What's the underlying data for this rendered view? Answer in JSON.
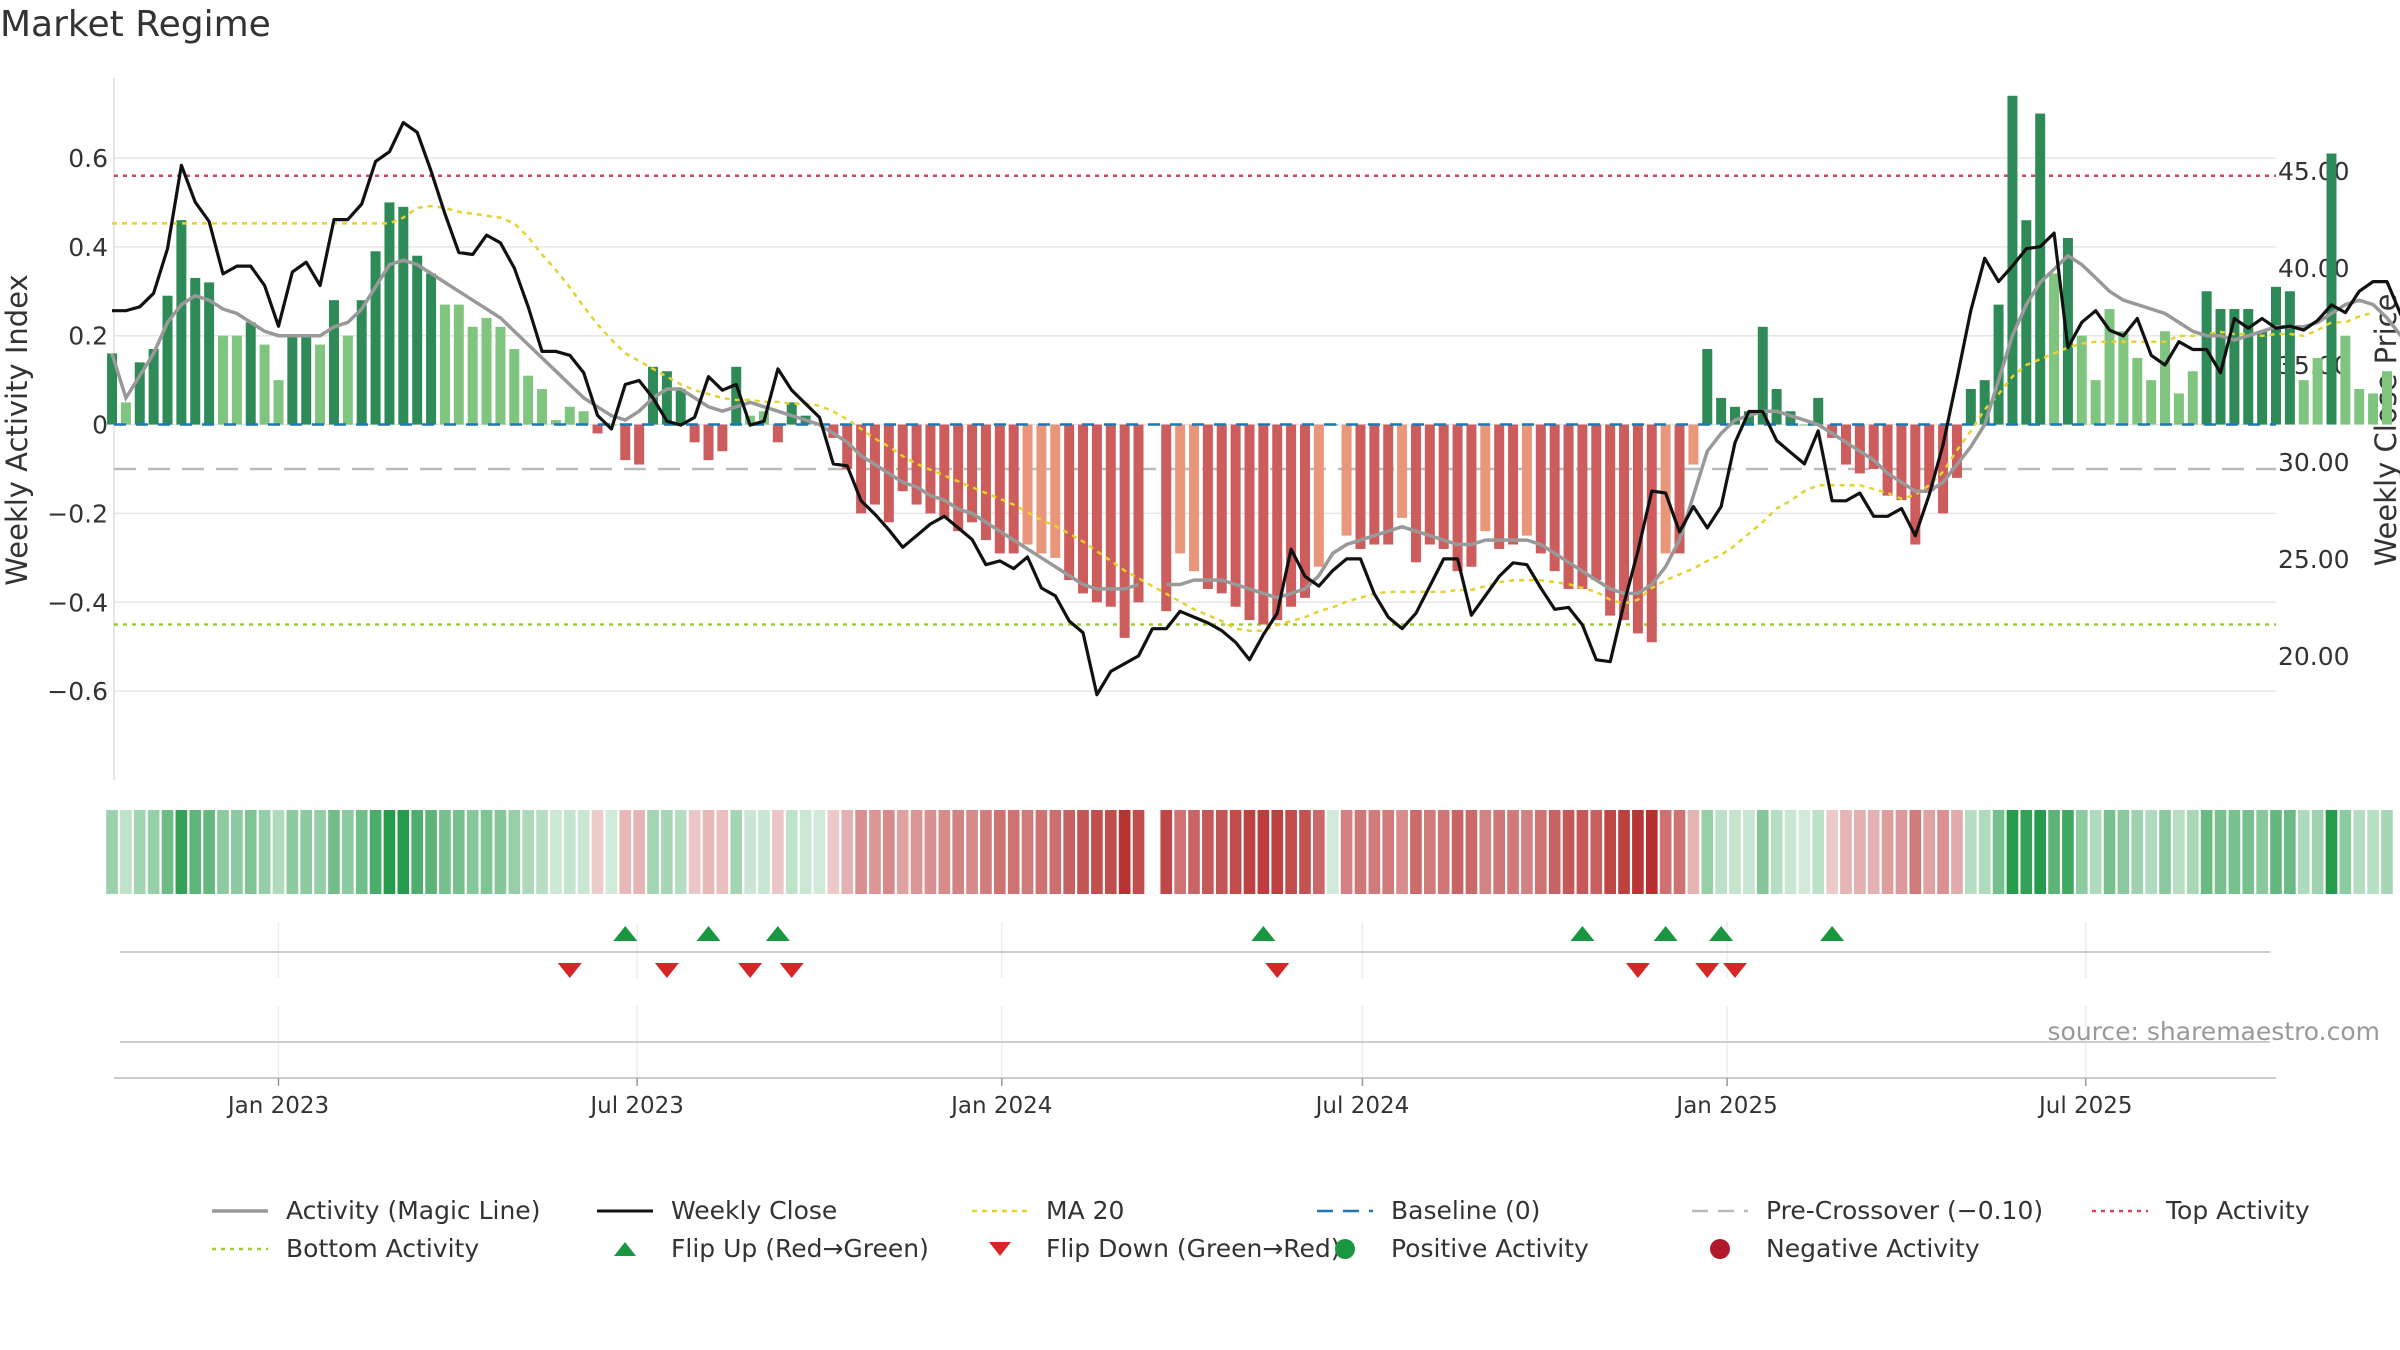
{
  "title": "Market Regime",
  "source": "source: sharemaestro.com",
  "chart_data": {
    "type": "bar",
    "y_left_label": "Weekly Activity Index",
    "y_right_label": "Weekly Close Price",
    "left_ylim": [
      -0.8,
      0.78
    ],
    "left_ticks": [
      0.6,
      0.4,
      0.2,
      0,
      -0.2,
      -0.4,
      -0.6
    ],
    "left_tick_labels": [
      "0.6",
      "0.4",
      "0.2",
      "0",
      "−0.2",
      "−0.4",
      "−0.6"
    ],
    "right_ylim": [
      13.6,
      49.8
    ],
    "right_ticks": [
      45,
      40,
      35,
      30,
      25,
      20
    ],
    "right_tick_labels": [
      "45.00",
      "40.00",
      "35.00",
      "30.00",
      "25.00",
      "20.00"
    ],
    "x_start": "2022-10-10",
    "x_end": "2025-10-05",
    "x_ticks": [
      "2023-01-01",
      "2023-07-01",
      "2024-01-01",
      "2024-07-01",
      "2025-01-01",
      "2025-07-01"
    ],
    "x_tick_labels": [
      "Jan 2023",
      "Jul 2023",
      "Jan 2024",
      "Jul 2024",
      "Jan 2025",
      "Jul 2025"
    ],
    "bar_start": "2022-10-09",
    "bar_interval_days": 7,
    "activity": [
      0.16,
      0.05,
      0.14,
      0.17,
      0.29,
      0.46,
      0.33,
      0.32,
      0.2,
      0.2,
      0.23,
      0.18,
      0.1,
      0.2,
      0.2,
      0.18,
      0.28,
      0.2,
      0.28,
      0.39,
      0.5,
      0.49,
      0.38,
      0.34,
      0.27,
      0.27,
      0.22,
      0.24,
      0.22,
      0.17,
      0.11,
      0.08,
      0.01,
      0.04,
      0.03,
      -0.02,
      0.0,
      -0.08,
      -0.09,
      0.13,
      0.12,
      0.08,
      -0.04,
      -0.08,
      -0.06,
      0.13,
      0.02,
      0.03,
      -0.04,
      0.05,
      0.02,
      0.0,
      -0.03,
      -0.1,
      -0.2,
      -0.18,
      -0.22,
      -0.15,
      -0.18,
      -0.2,
      -0.21,
      -0.24,
      -0.22,
      -0.26,
      -0.29,
      -0.29,
      -0.27,
      -0.29,
      -0.3,
      -0.35,
      -0.38,
      -0.4,
      -0.41,
      -0.48,
      -0.4,
      null,
      -0.42,
      -0.29,
      -0.33,
      -0.37,
      -0.38,
      -0.41,
      -0.44,
      -0.45,
      -0.44,
      -0.41,
      -0.39,
      -0.32,
      0.0,
      -0.25,
      -0.28,
      -0.27,
      -0.27,
      -0.21,
      -0.31,
      -0.27,
      -0.28,
      -0.33,
      -0.32,
      -0.24,
      -0.28,
      -0.27,
      -0.25,
      -0.29,
      -0.33,
      -0.37,
      -0.37,
      -0.35,
      -0.43,
      -0.44,
      -0.47,
      -0.49,
      -0.29,
      -0.29,
      -0.09,
      0.17,
      0.06,
      0.04,
      0.03,
      0.22,
      0.08,
      0.03,
      0.0,
      0.06,
      -0.03,
      -0.09,
      -0.11,
      -0.1,
      -0.16,
      -0.17,
      -0.27,
      -0.15,
      -0.2,
      -0.12,
      0.08,
      0.1,
      0.27,
      0.74,
      0.46,
      0.7,
      0.34,
      0.42,
      0.2,
      0.1,
      0.26,
      0.21,
      0.15,
      0.1,
      0.21,
      0.07,
      0.12,
      0.3,
      0.26,
      0.26,
      0.26,
      0.21,
      0.31,
      0.3,
      0.1,
      0.15,
      0.61,
      0.2,
      0.08,
      0.07,
      0.12
    ],
    "magic_line": [
      0.16,
      0.06,
      0.11,
      0.16,
      0.23,
      0.27,
      0.29,
      0.28,
      0.26,
      0.25,
      0.23,
      0.21,
      0.2,
      0.2,
      0.2,
      0.2,
      0.22,
      0.23,
      0.26,
      0.31,
      0.36,
      0.37,
      0.36,
      0.34,
      0.32,
      0.3,
      0.28,
      0.26,
      0.24,
      0.21,
      0.18,
      0.15,
      0.12,
      0.09,
      0.06,
      0.04,
      0.02,
      0.01,
      0.03,
      0.06,
      0.08,
      0.08,
      0.06,
      0.04,
      0.03,
      0.04,
      0.05,
      0.04,
      0.03,
      0.02,
      0.01,
      0.0,
      -0.02,
      -0.04,
      -0.07,
      -0.09,
      -0.11,
      -0.13,
      -0.14,
      -0.16,
      -0.17,
      -0.19,
      -0.2,
      -0.22,
      -0.24,
      -0.26,
      -0.28,
      -0.3,
      -0.32,
      -0.34,
      -0.36,
      -0.37,
      -0.37,
      -0.37,
      -0.36,
      null,
      -0.36,
      -0.36,
      -0.35,
      -0.35,
      -0.35,
      -0.36,
      -0.37,
      -0.38,
      -0.39,
      -0.38,
      -0.37,
      -0.34,
      -0.29,
      -0.27,
      -0.26,
      -0.25,
      -0.24,
      -0.23,
      -0.24,
      -0.25,
      -0.26,
      -0.27,
      -0.27,
      -0.26,
      -0.26,
      -0.26,
      -0.26,
      -0.27,
      -0.29,
      -0.31,
      -0.33,
      -0.35,
      -0.37,
      -0.38,
      -0.38,
      -0.36,
      -0.32,
      -0.26,
      -0.16,
      -0.06,
      -0.02,
      0.01,
      0.02,
      0.03,
      0.03,
      0.02,
      0.01,
      0.0,
      -0.02,
      -0.04,
      -0.06,
      -0.08,
      -0.11,
      -0.13,
      -0.15,
      -0.15,
      -0.13,
      -0.09,
      -0.05,
      0.0,
      0.1,
      0.2,
      0.27,
      0.32,
      0.35,
      0.38,
      0.36,
      0.33,
      0.3,
      0.28,
      0.27,
      0.26,
      0.25,
      0.23,
      0.21,
      0.2,
      0.2,
      0.19,
      0.2,
      0.21,
      0.22,
      0.22,
      0.22,
      0.23,
      0.25,
      0.27,
      0.28,
      0.27,
      0.24,
      0.2,
      0.18
    ],
    "weekly_close": [
      37.8,
      37.8,
      38.0,
      38.7,
      41.0,
      45.3,
      43.4,
      42.4,
      39.7,
      40.1,
      40.1,
      39.1,
      37.0,
      39.8,
      40.3,
      39.1,
      42.5,
      42.5,
      43.3,
      45.5,
      46.0,
      47.5,
      47.0,
      45.0,
      42.8,
      40.8,
      40.7,
      41.7,
      41.3,
      40.0,
      38.0,
      35.7,
      35.7,
      35.5,
      34.6,
      32.4,
      31.7,
      34.0,
      34.2,
      33.3,
      32.1,
      31.9,
      32.3,
      34.4,
      33.7,
      34.0,
      31.9,
      32.1,
      34.8,
      33.7,
      33.0,
      32.3,
      29.9,
      29.8,
      28.0,
      27.3,
      26.5,
      25.6,
      26.2,
      26.8,
      27.2,
      26.6,
      26.0,
      24.7,
      24.9,
      24.5,
      25.1,
      23.5,
      23.1,
      21.8,
      21.2,
      18.0,
      19.2,
      19.6,
      20.0,
      21.4,
      21.4,
      22.3,
      22.0,
      21.7,
      21.3,
      20.7,
      19.8,
      21.1,
      22.2,
      25.5,
      24.1,
      23.6,
      24.4,
      25.0,
      25.0,
      23.2,
      22.0,
      21.4,
      22.2,
      23.6,
      25.0,
      25.0,
      22.1,
      23.1,
      24.1,
      24.8,
      24.7,
      23.5,
      22.4,
      22.5,
      21.6,
      19.8,
      19.7,
      22.7,
      25.4,
      28.5,
      28.4,
      26.4,
      27.7,
      26.6,
      27.7,
      31.0,
      32.6,
      32.6,
      31.1,
      30.5,
      29.9,
      31.6,
      28.0,
      28.0,
      28.4,
      27.2,
      27.2,
      27.6,
      26.2,
      28.3,
      30.9,
      34.3,
      37.8,
      40.5,
      39.3,
      40.1,
      41.0,
      41.1,
      41.8,
      35.9,
      37.2,
      37.8,
      36.8,
      36.5,
      37.4,
      35.5,
      35.0,
      36.2,
      35.8,
      35.8,
      34.6,
      37.4,
      36.9,
      37.4,
      36.9,
      37.0,
      36.8,
      37.3,
      38.1,
      37.7,
      38.8,
      39.3,
      39.3,
      37.6,
      37.0,
      38.5
    ],
    "ma20": [
      42.3,
      42.3,
      42.3,
      42.3,
      42.3,
      42.3,
      42.3,
      42.3,
      42.3,
      42.3,
      42.3,
      42.3,
      42.3,
      42.3,
      42.3,
      42.3,
      42.3,
      42.3,
      42.3,
      42.3,
      42.3,
      42.6,
      43.1,
      43.2,
      43.1,
      42.9,
      42.8,
      42.7,
      42.6,
      42.3,
      41.6,
      40.7,
      39.9,
      39.0,
      38.0,
      37.1,
      36.3,
      35.6,
      35.2,
      34.8,
      34.4,
      34.0,
      33.7,
      33.5,
      33.3,
      33.2,
      33.2,
      33.1,
      33.1,
      33.0,
      33.0,
      32.9,
      32.6,
      32.2,
      31.7,
      31.2,
      30.8,
      30.3,
      29.9,
      29.6,
      29.3,
      29.0,
      28.7,
      28.4,
      28.1,
      27.8,
      27.4,
      27.0,
      26.7,
      26.3,
      25.9,
      25.4,
      24.9,
      24.4,
      24.0,
      23.6,
      23.2,
      22.8,
      22.4,
      22.1,
      21.8,
      21.4,
      21.3,
      21.3,
      21.6,
      21.8,
      22.0,
      22.3,
      22.5,
      22.8,
      23.0,
      23.2,
      23.3,
      23.3,
      23.3,
      23.3,
      23.3,
      23.4,
      23.4,
      23.6,
      23.8,
      23.9,
      23.9,
      23.9,
      23.8,
      23.7,
      23.5,
      23.3,
      22.9,
      22.7,
      22.9,
      23.5,
      23.9,
      24.2,
      24.5,
      24.9,
      25.2,
      25.7,
      26.3,
      26.9,
      27.6,
      28.0,
      28.5,
      28.8,
      28.8,
      28.8,
      28.8,
      28.6,
      28.4,
      28.1,
      28.3,
      28.8,
      29.5,
      30.6,
      31.6,
      32.7,
      33.5,
      34.4,
      35.0,
      35.3,
      35.6,
      35.9,
      36.1,
      36.2,
      36.2,
      36.2,
      36.2,
      36.2,
      36.2,
      36.5,
      36.5,
      36.6,
      36.7,
      36.6,
      36.6,
      36.5,
      36.6,
      36.6,
      36.5,
      36.8,
      37.2,
      37.2,
      37.5,
      37.7
    ],
    "baseline": 0,
    "pre_crossover": -0.1,
    "top_activity": 0.56,
    "bottom_activity": -0.45,
    "flip_up_dates": [
      "2023-06-25",
      "2023-08-06",
      "2023-09-10",
      "2024-05-12",
      "2024-10-20",
      "2024-12-01",
      "2024-12-29",
      "2025-02-23"
    ],
    "flip_down_dates": [
      "2023-05-28",
      "2023-07-16",
      "2023-08-27",
      "2023-09-17",
      "2024-05-19",
      "2024-11-17",
      "2024-12-22",
      "2025-01-05"
    ],
    "colors": {
      "strong_green": "#2e8b57",
      "light_green": "#7fc47f",
      "strong_red": "#cd5c5c",
      "light_red": "#e9967a",
      "magic_line": "#999999",
      "weekly_close": "#111111",
      "ma20": "#e6d22e",
      "baseline": "#1f77b4",
      "pre_crossover": "#bbbbbb",
      "top_activity": "#d6455f",
      "bottom_activity": "#9acd32",
      "flip_up": "#1a9641",
      "flip_down": "#d62728",
      "positive": "#1a9641",
      "negative": "#b2182b"
    },
    "legend": [
      {
        "key": "magic",
        "label": "Activity (Magic Line)"
      },
      {
        "key": "close",
        "label": "Weekly Close"
      },
      {
        "key": "ma20",
        "label": "MA 20"
      },
      {
        "key": "baseline",
        "label": "Baseline (0)"
      },
      {
        "key": "precross",
        "label": "Pre-Crossover (−0.10)"
      },
      {
        "key": "top",
        "label": "Top Activity"
      },
      {
        "key": "bottom",
        "label": "Bottom Activity"
      },
      {
        "key": "flipup",
        "label": "Flip Up (Red→Green)"
      },
      {
        "key": "flipdown",
        "label": "Flip Down (Green→Red)"
      },
      {
        "key": "pos",
        "label": "Positive Activity"
      },
      {
        "key": "neg",
        "label": "Negative Activity"
      }
    ]
  }
}
